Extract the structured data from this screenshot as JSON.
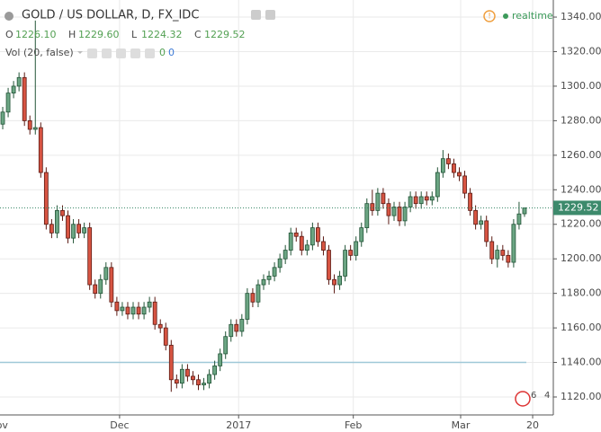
{
  "chart_data": {
    "type": "candlestick",
    "title": "GOLD / US DOLLAR, D, FX_IDC",
    "ohlc_legend": [
      {
        "key": "O",
        "text": "1226.10"
      },
      {
        "key": "H",
        "text": "1229.60"
      },
      {
        "key": "L",
        "text": "1224.32"
      },
      {
        "key": "C",
        "text": "1229.52"
      }
    ],
    "volume_legend": {
      "label": "Vol (20, false)",
      "values": [
        "0",
        "0"
      ]
    },
    "status": "realtime",
    "event_counts": [
      "6",
      "4"
    ],
    "up_color": "#6ba583",
    "up_border": "#225437",
    "down_color": "#d75442",
    "down_border": "#5b1a13",
    "open": [
      1278,
      1285,
      1296,
      1300,
      1305,
      1280,
      1275,
      1276,
      1250,
      1220,
      1215,
      1228,
      1225,
      1212,
      1220,
      1215,
      1218,
      1185,
      1180,
      1188,
      1195,
      1175,
      1170,
      1172,
      1168,
      1172,
      1168,
      1172,
      1175,
      1162,
      1160,
      1150,
      1130,
      1128,
      1136,
      1132,
      1130,
      1127,
      1128,
      1133,
      1138,
      1145,
      1155,
      1162,
      1158,
      1165,
      1180,
      1175,
      1185,
      1188,
      1190,
      1195,
      1200,
      1205,
      1215,
      1213,
      1205,
      1208,
      1218,
      1210,
      1205,
      1188,
      1185,
      1190,
      1205,
      1202,
      1210,
      1218,
      1232,
      1228,
      1238,
      1232,
      1225,
      1230,
      1222,
      1230,
      1236,
      1232,
      1236,
      1234,
      1236,
      1250,
      1258,
      1255,
      1250,
      1248,
      1238,
      1228,
      1220,
      1222,
      1210,
      1200,
      1205,
      1202,
      1198,
      1220,
      1226.1
    ],
    "high": [
      1288,
      1299,
      1303,
      1308,
      1308,
      1283,
      1338,
      1279,
      1253,
      1223,
      1231,
      1231,
      1228,
      1223,
      1223,
      1221,
      1221,
      1188,
      1191,
      1198,
      1198,
      1178,
      1175,
      1175,
      1175,
      1175,
      1175,
      1178,
      1178,
      1165,
      1163,
      1153,
      1133,
      1139,
      1139,
      1135,
      1133,
      1131,
      1136,
      1141,
      1148,
      1158,
      1165,
      1165,
      1168,
      1183,
      1183,
      1188,
      1191,
      1193,
      1198,
      1203,
      1208,
      1218,
      1218,
      1216,
      1211,
      1221,
      1221,
      1213,
      1208,
      1191,
      1193,
      1208,
      1208,
      1213,
      1221,
      1235,
      1240,
      1241,
      1241,
      1235,
      1233,
      1233,
      1233,
      1239,
      1239,
      1239,
      1239,
      1239,
      1253,
      1263,
      1261,
      1258,
      1253,
      1251,
      1241,
      1231,
      1225,
      1225,
      1213,
      1208,
      1208,
      1205,
      1223,
      1233,
      1229.6
    ],
    "low": [
      1275,
      1282,
      1293,
      1297,
      1277,
      1272,
      1272,
      1247,
      1217,
      1212,
      1212,
      1222,
      1209,
      1209,
      1212,
      1212,
      1182,
      1177,
      1177,
      1185,
      1172,
      1167,
      1167,
      1165,
      1165,
      1165,
      1165,
      1169,
      1159,
      1157,
      1147,
      1123,
      1125,
      1125,
      1129,
      1127,
      1124,
      1124,
      1125,
      1130,
      1135,
      1142,
      1152,
      1155,
      1155,
      1162,
      1172,
      1172,
      1182,
      1185,
      1187,
      1192,
      1197,
      1202,
      1210,
      1202,
      1202,
      1205,
      1207,
      1202,
      1185,
      1180,
      1182,
      1187,
      1199,
      1199,
      1207,
      1215,
      1225,
      1225,
      1229,
      1220,
      1222,
      1219,
      1219,
      1227,
      1229,
      1229,
      1231,
      1231,
      1233,
      1247,
      1252,
      1247,
      1245,
      1235,
      1225,
      1217,
      1217,
      1207,
      1197,
      1195,
      1199,
      1195,
      1195,
      1217,
      1224.32
    ],
    "close": [
      1285,
      1296,
      1300,
      1305,
      1280,
      1275,
      1276,
      1250,
      1220,
      1215,
      1228,
      1225,
      1212,
      1220,
      1215,
      1218,
      1185,
      1180,
      1188,
      1195,
      1175,
      1170,
      1172,
      1168,
      1172,
      1168,
      1172,
      1175,
      1162,
      1160,
      1150,
      1130,
      1128,
      1136,
      1132,
      1130,
      1127,
      1128,
      1133,
      1138,
      1145,
      1155,
      1162,
      1158,
      1165,
      1180,
      1175,
      1185,
      1188,
      1190,
      1195,
      1200,
      1205,
      1215,
      1213,
      1205,
      1208,
      1218,
      1210,
      1205,
      1188,
      1185,
      1190,
      1205,
      1202,
      1210,
      1218,
      1232,
      1228,
      1238,
      1232,
      1225,
      1230,
      1222,
      1230,
      1236,
      1232,
      1236,
      1234,
      1236,
      1250,
      1258,
      1255,
      1250,
      1248,
      1238,
      1228,
      1220,
      1222,
      1210,
      1200,
      1205,
      1202,
      1198,
      1220,
      1226,
      1229.52
    ],
    "xlim": [
      -0.5,
      101.3
    ],
    "xticks": [
      {
        "value": -0.8,
        "label": "Nov"
      },
      {
        "value": 21.5,
        "label": "Dec"
      },
      {
        "value": 43.4,
        "label": "2017"
      },
      {
        "value": 64.5,
        "label": "Feb"
      },
      {
        "value": 84.25,
        "label": "Mar"
      },
      {
        "value": 97.5,
        "label": "20"
      }
    ],
    "ylim": [
      1109.6,
      1349.9
    ],
    "yticks": [
      {
        "value": 1120,
        "label": "1120.00"
      },
      {
        "value": 1140,
        "label": "1140.00"
      },
      {
        "value": 1160,
        "label": "1160.00"
      },
      {
        "value": 1180,
        "label": "1180.00"
      },
      {
        "value": 1200,
        "label": "1200.00"
      },
      {
        "value": 1220,
        "label": "1220.00"
      },
      {
        "value": 1240,
        "label": "1240.00"
      },
      {
        "value": 1260,
        "label": "1260.00"
      },
      {
        "value": 1280,
        "label": "1280.00"
      },
      {
        "value": 1300,
        "label": "1300.00"
      },
      {
        "value": 1320,
        "label": "1320.00"
      },
      {
        "value": 1340,
        "label": "1340.00"
      }
    ],
    "hline": 1140,
    "hline_color": "#9fc8d8",
    "grid": true
  }
}
